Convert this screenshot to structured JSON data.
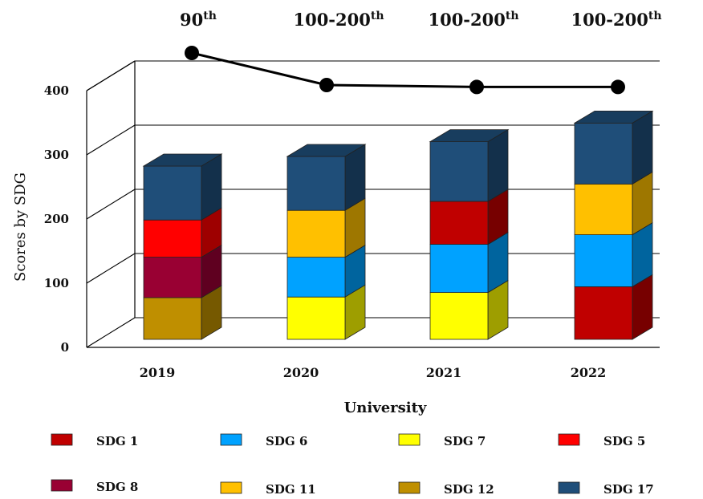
{
  "chart_data": {
    "type": "bar",
    "subtype": "stacked-3d",
    "xlabel": "University",
    "ylabel": "Scores by SDG",
    "ylim": [
      0,
      400
    ],
    "yticks": [
      0,
      100,
      200,
      300,
      400
    ],
    "categories": [
      "2019",
      "2020",
      "2021",
      "2022"
    ],
    "grid": true,
    "legend_position": "bottom",
    "stacks": [
      [
        {
          "name": "SDG 12",
          "value": 65
        },
        {
          "name": "SDG 8",
          "value": 63
        },
        {
          "name": "SDG 5",
          "value": 58
        },
        {
          "name": "SDG 17",
          "value": 84
        }
      ],
      [
        {
          "name": "SDG 7",
          "value": 66
        },
        {
          "name": "SDG 6",
          "value": 62
        },
        {
          "name": "SDG 11",
          "value": 73
        },
        {
          "name": "SDG 17",
          "value": 84
        }
      ],
      [
        {
          "name": "SDG 7",
          "value": 73
        },
        {
          "name": "SDG 6",
          "value": 75
        },
        {
          "name": "SDG 1",
          "value": 67
        },
        {
          "name": "SDG 17",
          "value": 93
        }
      ],
      [
        {
          "name": "SDG 1",
          "value": 82
        },
        {
          "name": "SDG 6",
          "value": 81
        },
        {
          "name": "SDG 11",
          "value": 79
        },
        {
          "name": "SDG 17",
          "value": 95
        }
      ]
    ],
    "ranking_line": {
      "labels": [
        {
          "main": "90",
          "sup": "th"
        },
        {
          "main": "100-200",
          "sup": "th"
        },
        {
          "main": "100-200",
          "sup": "th"
        },
        {
          "main": "100-200",
          "sup": "th"
        }
      ],
      "marker_values": [
        465,
        415,
        412,
        412
      ]
    },
    "legend": [
      {
        "name": "SDG 1",
        "color": "#c00000"
      },
      {
        "name": "SDG 6",
        "color": "#00a2ff"
      },
      {
        "name": "SDG 7",
        "color": "#ffff00"
      },
      {
        "name": "SDG 5",
        "color": "#ff0000"
      },
      {
        "name": "SDG 8",
        "color": "#990033"
      },
      {
        "name": "SDG 11",
        "color": "#ffc000"
      },
      {
        "name": "SDG 12",
        "color": "#bf8f00"
      },
      {
        "name": "SDG 17",
        "color": "#1f4e79"
      }
    ]
  }
}
